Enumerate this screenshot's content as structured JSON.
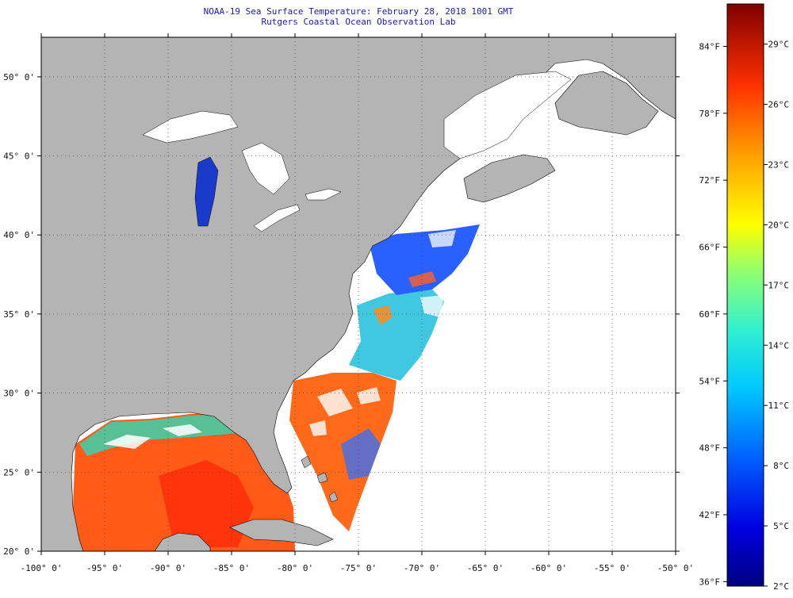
{
  "title": "NOAA-19 Sea Surface Temperature:  February 28, 2018 1001 GMT",
  "subtitle": "Rutgers Coastal Ocean Observation Lab",
  "axes": {
    "lon_labels": [
      "-100° 0'",
      "-95° 0'",
      "-90° 0'",
      "-85° 0'",
      "-80° 0'",
      "-75° 0'",
      "-70° 0'",
      "-65° 0'",
      "-60° 0'",
      "-55° 0'",
      "-50° 0'"
    ],
    "lon_values": [
      -100,
      -95,
      -90,
      -85,
      -80,
      -75,
      -70,
      -65,
      -60,
      -55,
      -50
    ],
    "lat_labels": [
      "20° 0'",
      "25° 0'",
      "30° 0'",
      "35° 0'",
      "40° 0'",
      "45° 0'",
      "50° 0'"
    ],
    "lat_values": [
      20,
      25,
      30,
      35,
      40,
      45,
      50
    ],
    "lon_range": [
      -100,
      -50
    ],
    "lat_range": [
      20,
      52.5
    ]
  },
  "colorbar": {
    "fahrenheit_labels": [
      "84°F",
      "78°F",
      "72°F",
      "66°F",
      "60°F",
      "54°F",
      "48°F",
      "42°F",
      "36°F"
    ],
    "fahrenheit_values": [
      84,
      78,
      72,
      66,
      60,
      54,
      48,
      42,
      36
    ],
    "celsius_labels": [
      "29°C",
      "26°C",
      "23°C",
      "20°C",
      "17°C",
      "14°C",
      "11°C",
      "8°C",
      "5°C",
      "2°C"
    ],
    "celsius_values": [
      29,
      26,
      23,
      20,
      17,
      14,
      11,
      8,
      5,
      2
    ],
    "range_c": [
      2,
      31
    ],
    "colors": [
      "#000080",
      "#0000ff",
      "#0080ff",
      "#00d8ff",
      "#40ffc0",
      "#c0ff40",
      "#ffff00",
      "#ff9000",
      "#ff2000",
      "#800000"
    ]
  },
  "features": {
    "land_color": "#b4b4b4",
    "cloud_color": "#ffffff",
    "grid": "dotted"
  }
}
